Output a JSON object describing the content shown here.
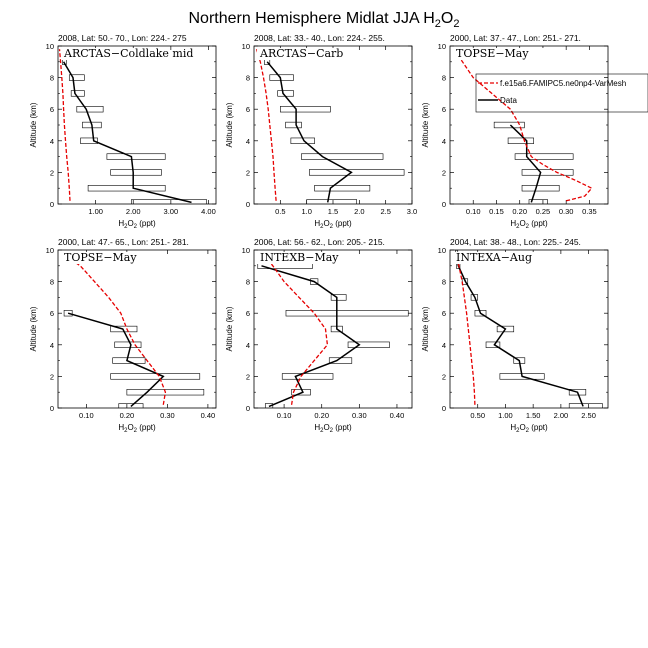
{
  "figure": {
    "title_main": "Northern Hemisphere Midlat JJA H",
    "title_sub": "2",
    "title_tail": "O",
    "title_sub2": "2"
  },
  "legend": {
    "model_label": "f.e15a6.FAMIPC5.ne0np4-VarMesh",
    "data_label": "Data",
    "model_color": "#e60000",
    "data_color": "#000000"
  },
  "chart_data": [
    {
      "type": "line",
      "header": "2008, Lat:  50.- 70., Lon: 224.- 275",
      "name": "ARCTAS−Coldlake mid",
      "xlabel": "H2O2 (ppt)",
      "ylabel": "Altitude (km)",
      "xlim": [
        0.0,
        4.2
      ],
      "ylim": [
        0,
        10
      ],
      "xticks": [
        1.0,
        2.0,
        3.0,
        4.0
      ],
      "xticklabels": [
        "1.00",
        "2.00",
        "3.00",
        "4.00"
      ],
      "yticks": [
        0,
        2,
        4,
        6,
        8,
        10
      ],
      "data": [
        {
          "alt": 0.1,
          "mean": 3.55,
          "lo": 1.95,
          "hi": 3.95
        },
        {
          "alt": 1.0,
          "mean": 2.0,
          "lo": 0.8,
          "hi": 2.85
        },
        {
          "alt": 2.0,
          "mean": 2.0,
          "lo": 1.4,
          "hi": 2.75
        },
        {
          "alt": 3.0,
          "mean": 1.95,
          "lo": 1.3,
          "hi": 2.85
        },
        {
          "alt": 4.0,
          "mean": 0.95,
          "lo": 0.6,
          "hi": 1.05
        },
        {
          "alt": 5.0,
          "mean": 0.9,
          "lo": 0.65,
          "hi": 1.15
        },
        {
          "alt": 6.0,
          "mean": 0.75,
          "lo": 0.5,
          "hi": 1.2
        },
        {
          "alt": 7.0,
          "mean": 0.45,
          "lo": 0.35,
          "hi": 0.7
        },
        {
          "alt": 8.0,
          "mean": 0.4,
          "lo": 0.3,
          "hi": 0.7
        },
        {
          "alt": 9.0,
          "mean": 0.15,
          "lo": 0.12,
          "hi": 0.22
        }
      ],
      "model": {
        "x": [
          0.32,
          0.3,
          0.27,
          0.23,
          0.2,
          0.17,
          0.15,
          0.13,
          0.1,
          0.07,
          0.04
        ],
        "alt": [
          0.2,
          1,
          2,
          3,
          4,
          5,
          6,
          7,
          8,
          9,
          9.8
        ]
      }
    },
    {
      "type": "line",
      "header": "2008, Lat:  33.- 40., Lon: 224.- 255.",
      "name": "ARCTAS−Carb",
      "xlabel": "H2O2 (ppt)",
      "ylabel": "Altitude (km)",
      "xlim": [
        0.0,
        3.0
      ],
      "ylim": [
        0,
        10
      ],
      "xticks": [
        0.5,
        1.0,
        1.5,
        2.0,
        2.5,
        3.0
      ],
      "xticklabels": [
        "0.5",
        "1.0",
        "1.5",
        "2.0",
        "2.5",
        "3.0"
      ],
      "yticks": [
        0,
        2,
        4,
        6,
        8,
        10
      ],
      "data": [
        {
          "alt": 0.1,
          "mean": 1.4,
          "lo": 1.0,
          "hi": 1.95
        },
        {
          "alt": 1.0,
          "mean": 1.45,
          "lo": 1.15,
          "hi": 2.2
        },
        {
          "alt": 2.0,
          "mean": 1.85,
          "lo": 1.05,
          "hi": 2.85
        },
        {
          "alt": 3.0,
          "mean": 1.3,
          "lo": 0.9,
          "hi": 2.45
        },
        {
          "alt": 4.0,
          "mean": 0.95,
          "lo": 0.7,
          "hi": 1.15
        },
        {
          "alt": 5.0,
          "mean": 0.8,
          "lo": 0.6,
          "hi": 0.9
        },
        {
          "alt": 6.0,
          "mean": 0.8,
          "lo": 0.5,
          "hi": 1.45
        },
        {
          "alt": 7.0,
          "mean": 0.55,
          "lo": 0.45,
          "hi": 0.75
        },
        {
          "alt": 8.0,
          "mean": 0.5,
          "lo": 0.3,
          "hi": 0.75
        },
        {
          "alt": 9.0,
          "mean": 0.25,
          "lo": 0.2,
          "hi": 0.3
        }
      ],
      "model": {
        "x": [
          0.42,
          0.4,
          0.38,
          0.36,
          0.33,
          0.3,
          0.27,
          0.23,
          0.18,
          0.12,
          0.05
        ],
        "alt": [
          0.2,
          1,
          2,
          3,
          4,
          5,
          6,
          7,
          8,
          9,
          9.8
        ]
      }
    },
    {
      "type": "line",
      "header": "2000, Lat:  37.- 47., Lon: 251.- 271.",
      "name": "TOPSE−May",
      "xlabel": "H2O2 (ppt)",
      "ylabel": "Altitude (km)",
      "xlim": [
        0.05,
        0.39
      ],
      "ylim": [
        0,
        10
      ],
      "xticks": [
        0.1,
        0.15,
        0.2,
        0.25,
        0.3,
        0.35
      ],
      "xticklabels": [
        "0.10",
        "0.15",
        "0.20",
        "0.25",
        "0.30",
        "0.35"
      ],
      "yticks": [
        0,
        2,
        4,
        6,
        8,
        10
      ],
      "data": [
        {
          "alt": 0.1,
          "mean": 0.225,
          "lo": 0.22,
          "hi": 0.26
        },
        {
          "alt": 1.0,
          "mean": 0.235,
          "lo": 0.205,
          "hi": 0.285
        },
        {
          "alt": 2.0,
          "mean": 0.245,
          "lo": 0.205,
          "hi": 0.315
        },
        {
          "alt": 3.0,
          "mean": 0.215,
          "lo": 0.19,
          "hi": 0.315
        },
        {
          "alt": 4.0,
          "mean": 0.215,
          "lo": 0.175,
          "hi": 0.23
        },
        {
          "alt": 5.0,
          "mean": 0.18,
          "lo": 0.145,
          "hi": 0.21
        }
      ],
      "model": {
        "x": [
          0.3,
          0.34,
          0.355,
          0.32,
          0.28,
          0.25,
          0.225,
          0.21,
          0.2,
          0.18,
          0.14,
          0.1,
          0.07
        ],
        "alt": [
          0.2,
          0.5,
          1,
          1.5,
          2,
          2.5,
          3,
          4,
          5,
          6,
          7,
          8,
          9.3
        ]
      }
    },
    {
      "type": "line",
      "header": "2000, Lat:  47.- 65., Lon: 251.- 281.",
      "name": "TOPSE−May",
      "xlabel": "H2O2 (ppt)",
      "ylabel": "Altitude (km)",
      "xlim": [
        0.03,
        0.42
      ],
      "ylim": [
        0,
        10
      ],
      "xticks": [
        0.1,
        0.2,
        0.3,
        0.4
      ],
      "xticklabels": [
        "0.10",
        "0.20",
        "0.30",
        "0.40"
      ],
      "yticks": [
        0,
        2,
        4,
        6,
        8,
        10
      ],
      "data": [
        {
          "alt": 0.1,
          "mean": 0.21,
          "lo": 0.18,
          "hi": 0.24
        },
        {
          "alt": 1.0,
          "mean": 0.25,
          "lo": 0.2,
          "hi": 0.39
        },
        {
          "alt": 2.0,
          "mean": 0.29,
          "lo": 0.16,
          "hi": 0.38
        },
        {
          "alt": 3.0,
          "mean": 0.2,
          "lo": 0.165,
          "hi": 0.245
        },
        {
          "alt": 4.0,
          "mean": 0.21,
          "lo": 0.17,
          "hi": 0.235
        },
        {
          "alt": 5.0,
          "mean": 0.19,
          "lo": 0.16,
          "hi": 0.225
        },
        {
          "alt": 6.0,
          "mean": 0.055,
          "lo": 0.045,
          "hi": 0.065
        }
      ],
      "model": {
        "x": [
          0.29,
          0.295,
          0.28,
          0.25,
          0.22,
          0.2,
          0.185,
          0.155,
          0.12,
          0.085,
          0.05
        ],
        "alt": [
          0.2,
          1,
          2,
          3,
          4,
          5,
          6,
          7,
          8,
          9,
          9.6
        ]
      }
    },
    {
      "type": "line",
      "header": "2006, Lat:  56.- 62., Lon: 205.- 215.",
      "name": "INTEXB−May",
      "xlabel": "H2O2 (ppt)",
      "ylabel": "Altitude (km)",
      "xlim": [
        0.02,
        0.44
      ],
      "ylim": [
        0,
        10
      ],
      "xticks": [
        0.1,
        0.2,
        0.3,
        0.4
      ],
      "xticklabels": [
        "0.10",
        "0.20",
        "0.30",
        "0.40"
      ],
      "yticks": [
        0,
        2,
        4,
        6,
        8,
        10
      ],
      "data": [
        {
          "alt": 0.1,
          "mean": 0.06,
          "lo": 0.05,
          "hi": 0.07
        },
        {
          "alt": 1.0,
          "mean": 0.15,
          "lo": 0.12,
          "hi": 0.17
        },
        {
          "alt": 2.0,
          "mean": 0.13,
          "lo": 0.095,
          "hi": 0.23
        },
        {
          "alt": 3.0,
          "mean": 0.24,
          "lo": 0.22,
          "hi": 0.28
        },
        {
          "alt": 4.0,
          "mean": 0.3,
          "lo": 0.27,
          "hi": 0.38
        },
        {
          "alt": 5.0,
          "mean": 0.24,
          "lo": 0.225,
          "hi": 0.255
        },
        {
          "alt": 6.0,
          "mean": 0.24,
          "lo": 0.105,
          "hi": 0.43
        },
        {
          "alt": 7.0,
          "mean": 0.24,
          "lo": 0.225,
          "hi": 0.265
        },
        {
          "alt": 8.0,
          "mean": 0.18,
          "lo": 0.17,
          "hi": 0.19
        },
        {
          "alt": 9.0,
          "mean": 0.04,
          "lo": 0.03,
          "hi": 0.175
        }
      ],
      "model": {
        "x": [
          0.12,
          0.125,
          0.145,
          0.18,
          0.215,
          0.21,
          0.18,
          0.14,
          0.1,
          0.07,
          0.05
        ],
        "alt": [
          0.2,
          1,
          2,
          3,
          4,
          5,
          6,
          7,
          8,
          9,
          9.6
        ]
      }
    },
    {
      "type": "line",
      "header": "2004, Lat:  38.- 48., Lon: 225.- 245.",
      "name": "INTEXA−Aug",
      "xlabel": "H2O2 (ppt)",
      "ylabel": "Altitude (km)",
      "xlim": [
        0.0,
        2.85
      ],
      "ylim": [
        0,
        10
      ],
      "xticks": [
        0.5,
        1.0,
        1.5,
        2.0,
        2.5
      ],
      "xticklabels": [
        "0.50",
        "1.00",
        "1.50",
        "2.00",
        "2.50"
      ],
      "yticks": [
        0,
        2,
        4,
        6,
        8,
        10
      ],
      "data": [
        {
          "alt": 0.1,
          "mean": 2.4,
          "lo": 2.15,
          "hi": 2.75
        },
        {
          "alt": 1.0,
          "mean": 2.3,
          "lo": 2.15,
          "hi": 2.45
        },
        {
          "alt": 2.0,
          "mean": 1.3,
          "lo": 0.9,
          "hi": 1.7
        },
        {
          "alt": 3.0,
          "mean": 1.25,
          "lo": 1.15,
          "hi": 1.35
        },
        {
          "alt": 4.0,
          "mean": 0.8,
          "lo": 0.65,
          "hi": 0.9
        },
        {
          "alt": 5.0,
          "mean": 1.0,
          "lo": 0.85,
          "hi": 1.15
        },
        {
          "alt": 6.0,
          "mean": 0.55,
          "lo": 0.45,
          "hi": 0.65
        },
        {
          "alt": 7.0,
          "mean": 0.45,
          "lo": 0.38,
          "hi": 0.5
        },
        {
          "alt": 8.0,
          "mean": 0.28,
          "lo": 0.22,
          "hi": 0.32
        },
        {
          "alt": 9.0,
          "mean": 0.15,
          "lo": 0.12,
          "hi": 0.18
        },
        {
          "alt": 9.8,
          "mean": 0.12,
          "lo": 0.1,
          "hi": 0.14
        }
      ],
      "model": {
        "x": [
          0.45,
          0.44,
          0.42,
          0.39,
          0.36,
          0.33,
          0.3,
          0.26,
          0.22,
          0.16,
          0.1
        ],
        "alt": [
          0.2,
          1,
          2,
          3,
          4,
          5,
          6,
          7,
          8,
          9,
          9.8
        ]
      }
    }
  ]
}
